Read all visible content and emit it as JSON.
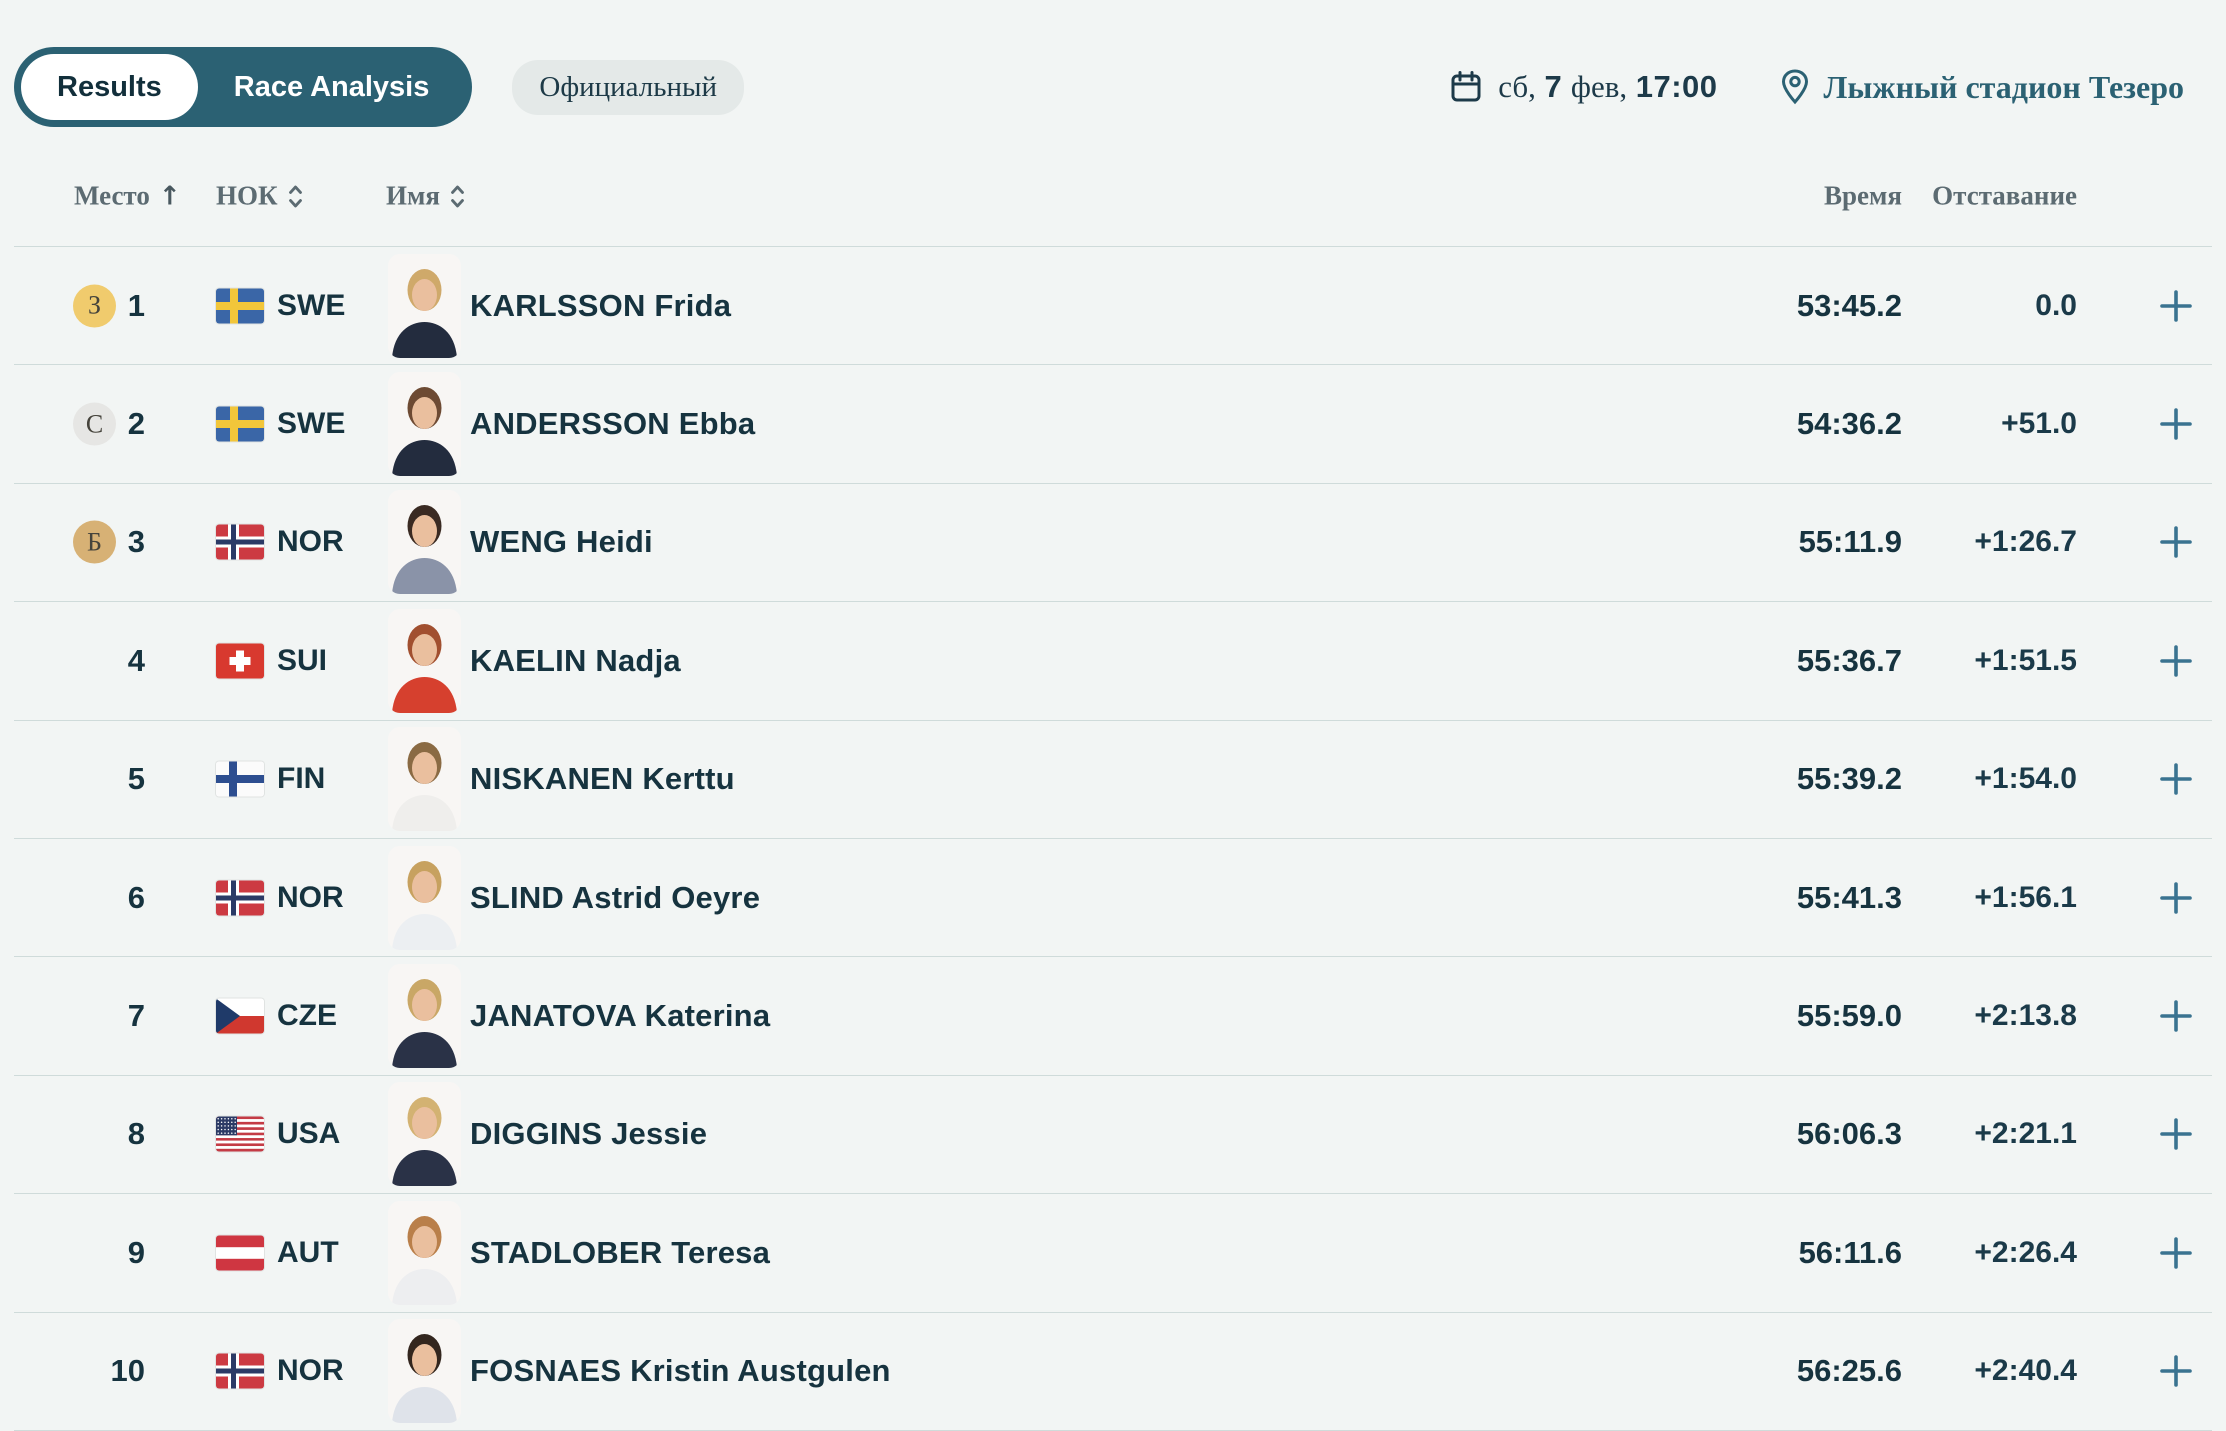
{
  "colors": {
    "background": "#f2f5f4",
    "accent_teal": "#2b6173",
    "text_dark": "#16333f",
    "header_gray": "#5c6b72",
    "divider": "#cfdbda",
    "plus_teal": "#3a7390",
    "badge_bg": "#e4e9e8",
    "gold": "#f0cb6d",
    "silver": "#e6e6e4",
    "bronze": "#d7b175"
  },
  "tabs": [
    {
      "label": "Results",
      "active": true
    },
    {
      "label": "Race Analysis",
      "active": false
    }
  ],
  "status_badge": "Официальный",
  "event_info": {
    "date": {
      "day_abbr": "сб,",
      "day_num": "7",
      "month": "фев,",
      "time": "17:00"
    },
    "location": "Лыжный стадион Тезеро"
  },
  "table": {
    "headers": {
      "place": "Место",
      "place_sort": "↑",
      "noc": "НОК",
      "name": "Имя",
      "time": "Время",
      "gap": "Отставание"
    },
    "rows": [
      {
        "place": "1",
        "medal": {
          "letter": "З",
          "color": "#f0cb6d"
        },
        "noc": "SWE",
        "flag": "swe",
        "name": "KARLSSON Frida",
        "time": "53:45.2",
        "gap": "0.0",
        "photo": {
          "hair": "#cfa96a",
          "top": "#232c3e"
        }
      },
      {
        "place": "2",
        "medal": {
          "letter": "С",
          "color": "#e6e6e4"
        },
        "noc": "SWE",
        "flag": "swe",
        "name": "ANDERSSON Ebba",
        "time": "54:36.2",
        "gap": "+51.0",
        "photo": {
          "hair": "#6d4a33",
          "top": "#232c3e"
        }
      },
      {
        "place": "3",
        "medal": {
          "letter": "Б",
          "color": "#d7b175"
        },
        "noc": "NOR",
        "flag": "nor",
        "name": "WENG Heidi",
        "time": "55:11.9",
        "gap": "+1:26.7",
        "photo": {
          "hair": "#3a2a22",
          "top": "#8a93a8"
        }
      },
      {
        "place": "4",
        "medal": null,
        "noc": "SUI",
        "flag": "sui",
        "name": "KAELIN Nadja",
        "time": "55:36.7",
        "gap": "+1:51.5",
        "photo": {
          "hair": "#a14f2f",
          "top": "#d6402e"
        }
      },
      {
        "place": "5",
        "medal": null,
        "noc": "FIN",
        "flag": "fin",
        "name": "NISKANEN Kerttu",
        "time": "55:39.2",
        "gap": "+1:54.0",
        "photo": {
          "hair": "#8a6a43",
          "top": "#efeeec"
        }
      },
      {
        "place": "6",
        "medal": null,
        "noc": "NOR",
        "flag": "nor",
        "name": "SLIND Astrid Oeyre",
        "time": "55:41.3",
        "gap": "+1:56.1",
        "photo": {
          "hair": "#c7a15f",
          "top": "#eceff2"
        }
      },
      {
        "place": "7",
        "medal": null,
        "noc": "CZE",
        "flag": "cze",
        "name": "JANATOVA Katerina",
        "time": "55:59.0",
        "gap": "+2:13.8",
        "photo": {
          "hair": "#c9a766",
          "top": "#2a3247"
        }
      },
      {
        "place": "8",
        "medal": null,
        "noc": "USA",
        "flag": "usa",
        "name": "DIGGINS Jessie",
        "time": "56:06.3",
        "gap": "+2:21.1",
        "photo": {
          "hair": "#d3b272",
          "top": "#2a3247"
        }
      },
      {
        "place": "9",
        "medal": null,
        "noc": "AUT",
        "flag": "aut",
        "name": "STADLOBER Teresa",
        "time": "56:11.6",
        "gap": "+2:26.4",
        "photo": {
          "hair": "#b97f4a",
          "top": "#edeef0"
        }
      },
      {
        "place": "10",
        "medal": null,
        "noc": "NOR",
        "flag": "nor",
        "name": "FOSNAES Kristin Austgulen",
        "time": "56:25.6",
        "gap": "+2:40.4",
        "photo": {
          "hair": "#33261e",
          "top": "#dfe3ea"
        }
      }
    ]
  }
}
